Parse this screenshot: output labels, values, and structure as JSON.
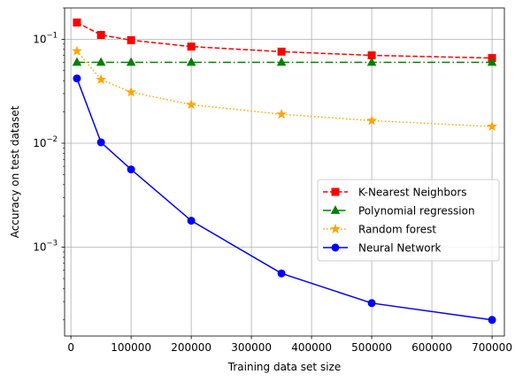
{
  "chart_data": {
    "type": "line",
    "xlabel": "Training data set size",
    "ylabel": "Accuracy on test dataset",
    "yscale": "log",
    "xlim": [
      -10500,
      720500
    ],
    "ylim": [
      0.00014,
      0.2
    ],
    "x_ticks": [
      0,
      100000,
      200000,
      300000,
      400000,
      500000,
      600000,
      700000
    ],
    "x_tick_labels": [
      "0",
      "100000",
      "200000",
      "300000",
      "400000",
      "500000",
      "600000",
      "700000"
    ],
    "y_major_ticks": [
      0.001,
      0.01,
      0.1
    ],
    "y_tick_labels": [
      {
        "base": "10",
        "exp": "−3"
      },
      {
        "base": "10",
        "exp": "−2"
      },
      {
        "base": "10",
        "exp": "−1"
      }
    ],
    "grid": true,
    "legend_position": "center-right",
    "x": [
      10000,
      50000,
      100000,
      200000,
      350000,
      500000,
      700000
    ],
    "series": [
      {
        "name": "K-Nearest Neighbors",
        "color": "#ff0000",
        "marker": "square",
        "line_style": "dashed",
        "values": [
          0.145,
          0.11,
          0.098,
          0.085,
          0.076,
          0.07,
          0.066
        ]
      },
      {
        "name": "Polynomial regression",
        "color": "#008000",
        "marker": "triangle-up",
        "line_style": "dashdot",
        "values": [
          0.06,
          0.06,
          0.06,
          0.06,
          0.06,
          0.06,
          0.06
        ]
      },
      {
        "name": "Random forest",
        "color": "#ffa500",
        "marker": "star",
        "line_style": "dotted",
        "values": [
          0.077,
          0.041,
          0.031,
          0.0235,
          0.019,
          0.0165,
          0.0145
        ]
      },
      {
        "name": "Neural Network",
        "color": "#0000ff",
        "marker": "circle",
        "line_style": "solid",
        "values": [
          0.042,
          0.0102,
          0.0056,
          0.0018,
          0.00056,
          0.00029,
          0.0002
        ]
      }
    ]
  }
}
